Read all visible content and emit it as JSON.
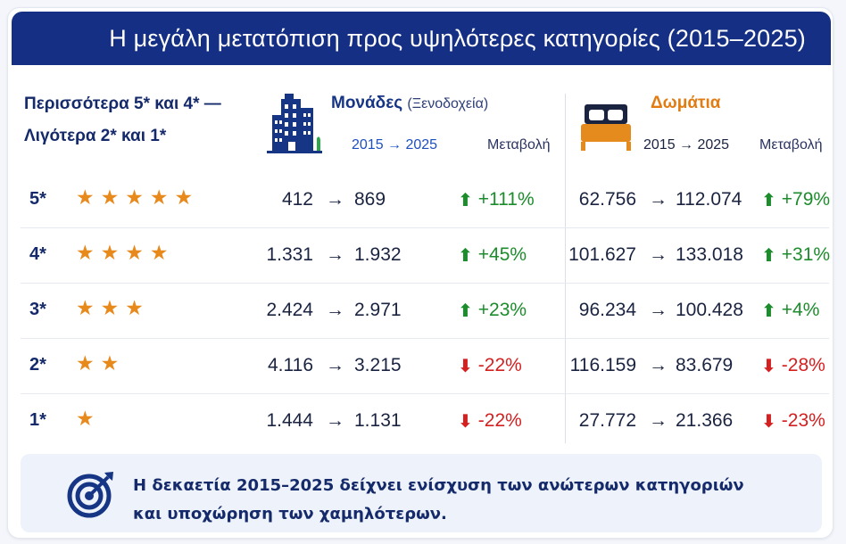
{
  "banner": {
    "title": "Η μεγάλη μετατόπιση προς υψηλότερες κατηγορίες (2015–2025)"
  },
  "lead": {
    "line1": "Περισσότερα 5* και 4* —",
    "line2": "Λιγότερα 2* και 1*"
  },
  "units": {
    "title": "Μονάδες",
    "subtitle": "(Ξενοδοχεία)",
    "years": "2015 → 2025",
    "change_label": "Μεταβολή",
    "icon": "hotel-building-icon"
  },
  "rooms": {
    "title": "Δωμάτια",
    "years": "2015 → 2025",
    "change_label": "Μεταβολή",
    "icon": "bed-icon"
  },
  "colors": {
    "banner": "#142f83",
    "up": "#1c8c2c",
    "down": "#d32020",
    "stars": "#e8891c",
    "rooms_title": "#e17b12"
  },
  "rows": [
    {
      "cat": "5*",
      "stars": "★★★★★",
      "units_from": "412",
      "units_to": "869",
      "units_change": "+111%",
      "units_dir": "up",
      "rooms_from": "62.756",
      "rooms_to": "112.074",
      "rooms_change": "+79%",
      "rooms_dir": "up"
    },
    {
      "cat": "4*",
      "stars": "★★★★",
      "units_from": "1.331",
      "units_to": "1.932",
      "units_change": "+45%",
      "units_dir": "up",
      "rooms_from": "101.627",
      "rooms_to": "133.018",
      "rooms_change": "+31%",
      "rooms_dir": "up"
    },
    {
      "cat": "3*",
      "stars": "★★★",
      "units_from": "2.424",
      "units_to": "2.971",
      "units_change": "+23%",
      "units_dir": "up",
      "rooms_from": "96.234",
      "rooms_to": "100.428",
      "rooms_change": "+4%",
      "rooms_dir": "up"
    },
    {
      "cat": "2*",
      "stars": "★★",
      "units_from": "4.116",
      "units_to": "3.215",
      "units_change": "-22%",
      "units_dir": "down",
      "rooms_from": "116.159",
      "rooms_to": "83.679",
      "rooms_change": "-28%",
      "rooms_dir": "down"
    },
    {
      "cat": "1*",
      "stars": "★",
      "units_from": "1.444",
      "units_to": "1.131",
      "units_change": "-22%",
      "units_dir": "down",
      "rooms_from": "27.772",
      "rooms_to": "21.366",
      "rooms_change": "-23%",
      "rooms_dir": "down"
    }
  ],
  "arrow": "→",
  "footer": {
    "line1": "Η δεκαετία 2015–2025 δείχνει ενίσχυση των ανώτερων κατηγοριών",
    "line2": "και υποχώρηση των χαμηλότερων.",
    "icon": "target-icon"
  }
}
